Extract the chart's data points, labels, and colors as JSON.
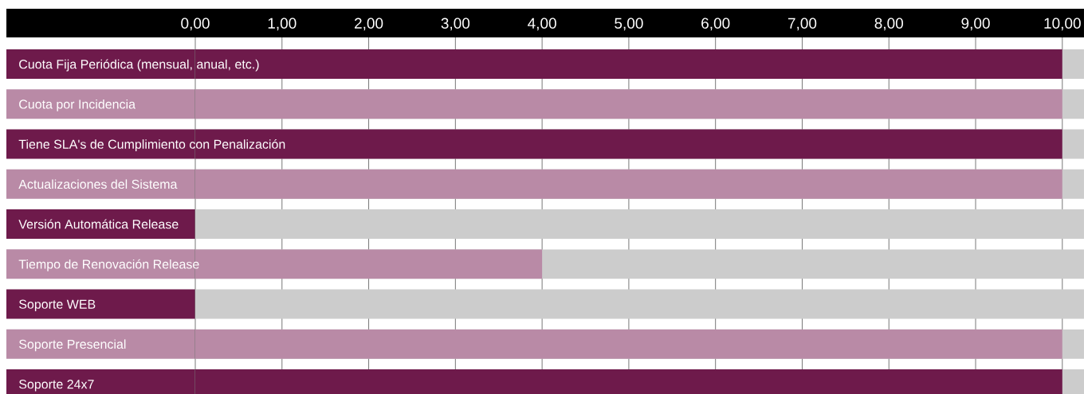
{
  "chart_data": {
    "type": "bar",
    "orientation": "horizontal",
    "categories": [
      "Cuota Fija Periódica (mensual, anual, etc.)",
      "Cuota por Incidencia",
      "Tiene SLA's de Cumplimiento con Penalización",
      "Actualizaciones del Sistema",
      "Versión Automática Release",
      "Tiempo de Renovación Release",
      "Soporte WEB",
      "Soporte Presencial",
      "Soporte 24x7"
    ],
    "values": [
      10,
      10,
      10,
      10,
      0,
      4,
      0,
      10,
      10
    ],
    "colors": [
      "#6e1a4b",
      "#b98aa6",
      "#6e1a4b",
      "#b98aa6",
      "#6e1a4b",
      "#b98aa6",
      "#6e1a4b",
      "#b98aa6",
      "#6e1a4b"
    ],
    "xlim": [
      0,
      10.25
    ],
    "xticks": [
      {
        "value": 0,
        "label": "0,00"
      },
      {
        "value": 1,
        "label": "1,00"
      },
      {
        "value": 2,
        "label": "2,00"
      },
      {
        "value": 3,
        "label": "3,00"
      },
      {
        "value": 4,
        "label": "4,00"
      },
      {
        "value": 5,
        "label": "5,00"
      },
      {
        "value": 6,
        "label": "6,00"
      },
      {
        "value": 7,
        "label": "7,00"
      },
      {
        "value": 8,
        "label": "8,00"
      },
      {
        "value": 9,
        "label": "9,00"
      },
      {
        "value": 10,
        "label": "10,00"
      }
    ],
    "bands": [
      {
        "axis": "y",
        "from": "Cuota Fija Periódica (mensual, anual, etc.)",
        "to": "Cuota Fija Periódica (mensual, anual, etc.)",
        "color": "#cccccc"
      },
      {
        "axis": "y",
        "from": "Cuota por Incidencia",
        "to": "Cuota por Incidencia",
        "color": "#cccccc"
      },
      {
        "axis": "y",
        "from": "Tiene SLA's de Cumplimiento con Penalización",
        "to": "Tiene SLA's de Cumplimiento con Penalización",
        "color": "#cccccc"
      },
      {
        "axis": "y",
        "from": "Actualizaciones del Sistema",
        "to": "Actualizaciones del Sistema",
        "color": "#cccccc"
      },
      {
        "axis": "y",
        "from": "Versión Automática Release",
        "to": "Versión Automática Release",
        "color": "#cccccc"
      },
      {
        "axis": "y",
        "from": "Tiempo de Renovación Release",
        "to": "Tiempo de Renovación Release",
        "color": "#cccccc"
      },
      {
        "axis": "y",
        "from": "Soporte WEB",
        "to": "Soporte WEB",
        "color": "#cccccc"
      },
      {
        "axis": "y",
        "from": "Soporte Presencial",
        "to": "Soporte Presencial",
        "color": "#cccccc"
      },
      {
        "axis": "y",
        "from": "Soporte 24x7",
        "to": "Soporte 24x7",
        "color": "#cccccc"
      }
    ],
    "grid": "x"
  }
}
